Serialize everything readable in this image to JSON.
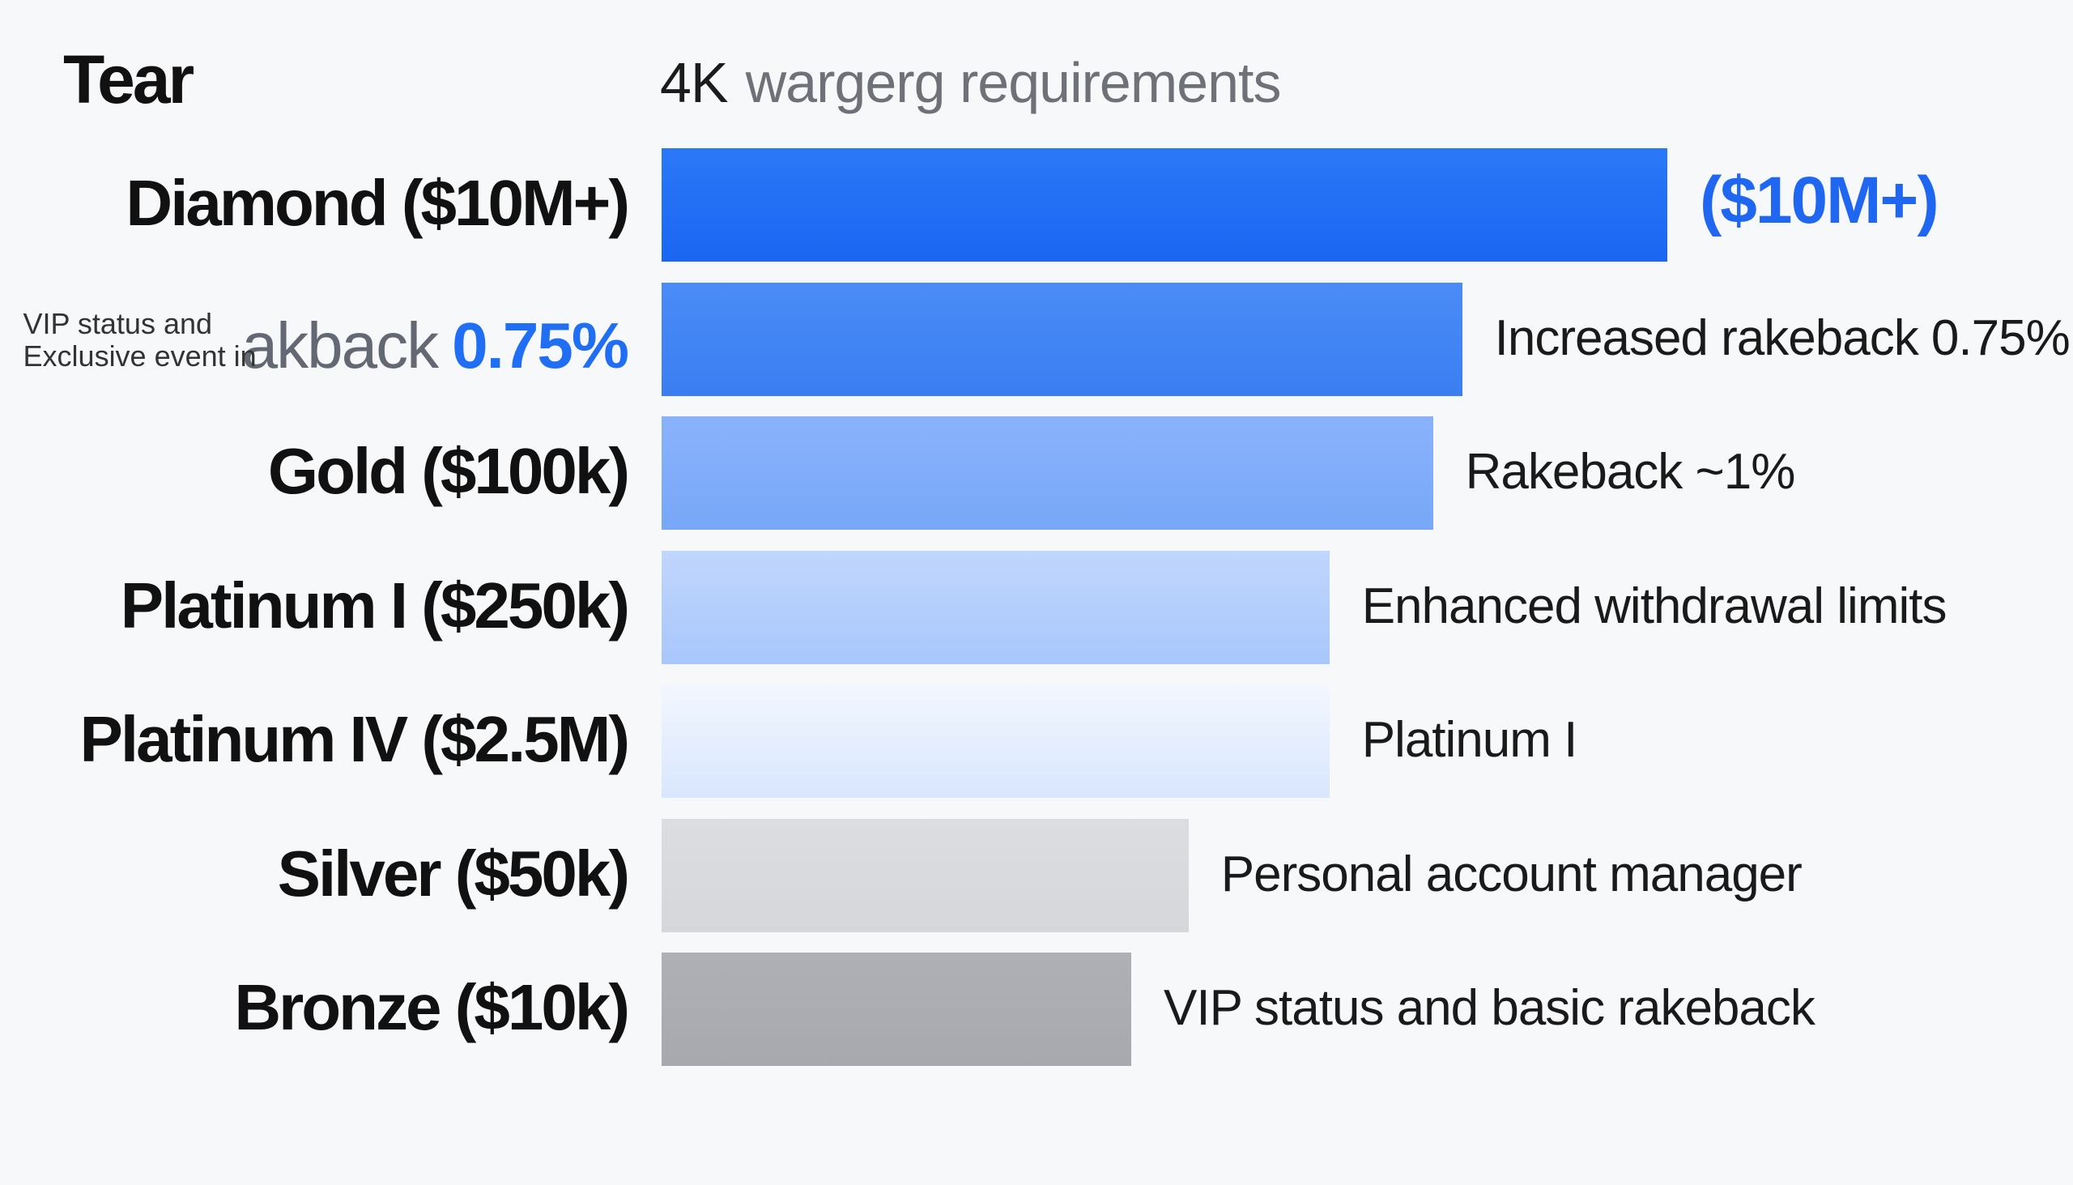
{
  "header": {
    "tier_label": "Tear",
    "req_strong": "4K",
    "req_rest": "wargerg requirements"
  },
  "row2_label": {
    "overlay_line1": "VIP status and",
    "overlay_line2": "Exclusive event in",
    "grey_part": "akback",
    "blue_part": "0.75%"
  },
  "chart_data": {
    "type": "bar",
    "orientation": "horizontal",
    "categories": [
      "Diamond ($10M+)",
      "",
      "Gold ($100k)",
      "Platinum I ($250k)",
      "Platinum IV ($2.5M)",
      "Silver ($50k)",
      "Bronze ($10k)"
    ],
    "values": [
      100,
      79.6,
      76.7,
      66.4,
      66.4,
      52.4,
      46.7
    ],
    "annotations": [
      "($10M+)",
      "Increased rakeback 0.75%",
      "Rakeback ~1%",
      "Enhanced withdrawal limits",
      "Platinum I",
      "Personal account manager",
      "VIP status and basic rakeback"
    ],
    "bar_colors": [
      [
        "#2b78f7",
        "#1a66f2"
      ],
      [
        "#4a8bf6",
        "#3a7ef2"
      ],
      [
        "#8ab2fb",
        "#77a7f8"
      ],
      [
        "#c1d6fd",
        "#a8c7fb"
      ],
      [
        "#f3f7ff",
        "#d8e6fd"
      ],
      [
        "#dcdde0",
        "#d6d7da"
      ],
      [
        "#aeb0b6",
        "#a7a9af"
      ]
    ],
    "xlim": [
      0,
      100
    ]
  }
}
